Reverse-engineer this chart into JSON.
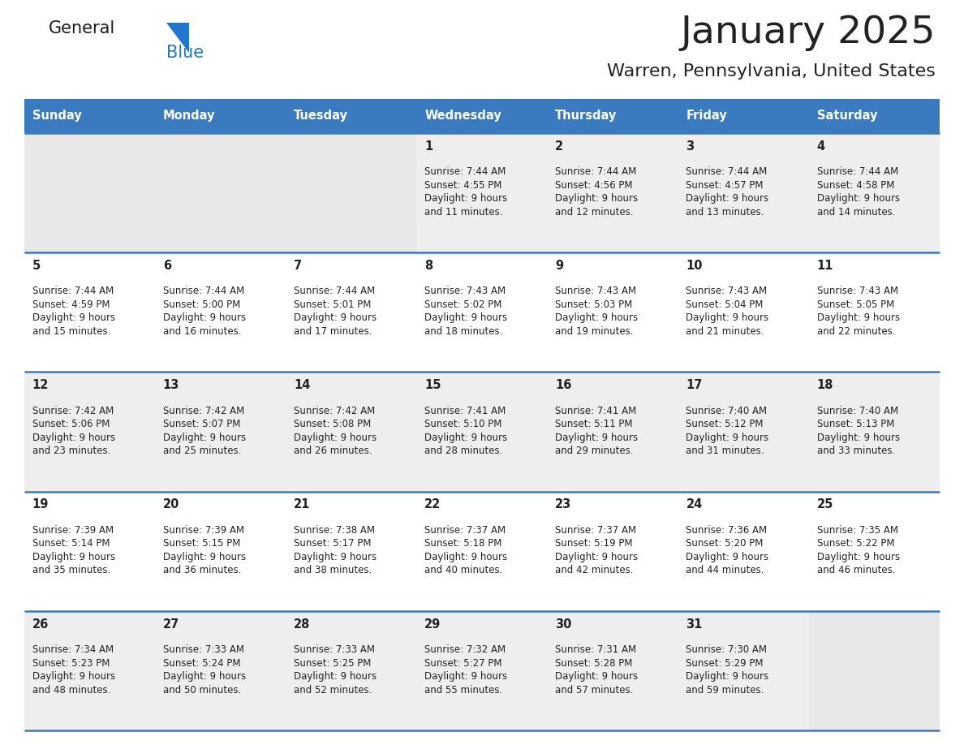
{
  "title": "January 2025",
  "subtitle": "Warren, Pennsylvania, United States",
  "header_bg": "#3a7abf",
  "header_text_color": "#ffffff",
  "day_names": [
    "Sunday",
    "Monday",
    "Tuesday",
    "Wednesday",
    "Thursday",
    "Friday",
    "Saturday"
  ],
  "weeks": [
    [
      {
        "day": "",
        "sunrise": "",
        "sunset": "",
        "daylight": ""
      },
      {
        "day": "",
        "sunrise": "",
        "sunset": "",
        "daylight": ""
      },
      {
        "day": "",
        "sunrise": "",
        "sunset": "",
        "daylight": ""
      },
      {
        "day": "1",
        "sunrise": "Sunrise: 7:44 AM",
        "sunset": "Sunset: 4:55 PM",
        "daylight": "Daylight: 9 hours\nand 11 minutes."
      },
      {
        "day": "2",
        "sunrise": "Sunrise: 7:44 AM",
        "sunset": "Sunset: 4:56 PM",
        "daylight": "Daylight: 9 hours\nand 12 minutes."
      },
      {
        "day": "3",
        "sunrise": "Sunrise: 7:44 AM",
        "sunset": "Sunset: 4:57 PM",
        "daylight": "Daylight: 9 hours\nand 13 minutes."
      },
      {
        "day": "4",
        "sunrise": "Sunrise: 7:44 AM",
        "sunset": "Sunset: 4:58 PM",
        "daylight": "Daylight: 9 hours\nand 14 minutes."
      }
    ],
    [
      {
        "day": "5",
        "sunrise": "Sunrise: 7:44 AM",
        "sunset": "Sunset: 4:59 PM",
        "daylight": "Daylight: 9 hours\nand 15 minutes."
      },
      {
        "day": "6",
        "sunrise": "Sunrise: 7:44 AM",
        "sunset": "Sunset: 5:00 PM",
        "daylight": "Daylight: 9 hours\nand 16 minutes."
      },
      {
        "day": "7",
        "sunrise": "Sunrise: 7:44 AM",
        "sunset": "Sunset: 5:01 PM",
        "daylight": "Daylight: 9 hours\nand 17 minutes."
      },
      {
        "day": "8",
        "sunrise": "Sunrise: 7:43 AM",
        "sunset": "Sunset: 5:02 PM",
        "daylight": "Daylight: 9 hours\nand 18 minutes."
      },
      {
        "day": "9",
        "sunrise": "Sunrise: 7:43 AM",
        "sunset": "Sunset: 5:03 PM",
        "daylight": "Daylight: 9 hours\nand 19 minutes."
      },
      {
        "day": "10",
        "sunrise": "Sunrise: 7:43 AM",
        "sunset": "Sunset: 5:04 PM",
        "daylight": "Daylight: 9 hours\nand 21 minutes."
      },
      {
        "day": "11",
        "sunrise": "Sunrise: 7:43 AM",
        "sunset": "Sunset: 5:05 PM",
        "daylight": "Daylight: 9 hours\nand 22 minutes."
      }
    ],
    [
      {
        "day": "12",
        "sunrise": "Sunrise: 7:42 AM",
        "sunset": "Sunset: 5:06 PM",
        "daylight": "Daylight: 9 hours\nand 23 minutes."
      },
      {
        "day": "13",
        "sunrise": "Sunrise: 7:42 AM",
        "sunset": "Sunset: 5:07 PM",
        "daylight": "Daylight: 9 hours\nand 25 minutes."
      },
      {
        "day": "14",
        "sunrise": "Sunrise: 7:42 AM",
        "sunset": "Sunset: 5:08 PM",
        "daylight": "Daylight: 9 hours\nand 26 minutes."
      },
      {
        "day": "15",
        "sunrise": "Sunrise: 7:41 AM",
        "sunset": "Sunset: 5:10 PM",
        "daylight": "Daylight: 9 hours\nand 28 minutes."
      },
      {
        "day": "16",
        "sunrise": "Sunrise: 7:41 AM",
        "sunset": "Sunset: 5:11 PM",
        "daylight": "Daylight: 9 hours\nand 29 minutes."
      },
      {
        "day": "17",
        "sunrise": "Sunrise: 7:40 AM",
        "sunset": "Sunset: 5:12 PM",
        "daylight": "Daylight: 9 hours\nand 31 minutes."
      },
      {
        "day": "18",
        "sunrise": "Sunrise: 7:40 AM",
        "sunset": "Sunset: 5:13 PM",
        "daylight": "Daylight: 9 hours\nand 33 minutes."
      }
    ],
    [
      {
        "day": "19",
        "sunrise": "Sunrise: 7:39 AM",
        "sunset": "Sunset: 5:14 PM",
        "daylight": "Daylight: 9 hours\nand 35 minutes."
      },
      {
        "day": "20",
        "sunrise": "Sunrise: 7:39 AM",
        "sunset": "Sunset: 5:15 PM",
        "daylight": "Daylight: 9 hours\nand 36 minutes."
      },
      {
        "day": "21",
        "sunrise": "Sunrise: 7:38 AM",
        "sunset": "Sunset: 5:17 PM",
        "daylight": "Daylight: 9 hours\nand 38 minutes."
      },
      {
        "day": "22",
        "sunrise": "Sunrise: 7:37 AM",
        "sunset": "Sunset: 5:18 PM",
        "daylight": "Daylight: 9 hours\nand 40 minutes."
      },
      {
        "day": "23",
        "sunrise": "Sunrise: 7:37 AM",
        "sunset": "Sunset: 5:19 PM",
        "daylight": "Daylight: 9 hours\nand 42 minutes."
      },
      {
        "day": "24",
        "sunrise": "Sunrise: 7:36 AM",
        "sunset": "Sunset: 5:20 PM",
        "daylight": "Daylight: 9 hours\nand 44 minutes."
      },
      {
        "day": "25",
        "sunrise": "Sunrise: 7:35 AM",
        "sunset": "Sunset: 5:22 PM",
        "daylight": "Daylight: 9 hours\nand 46 minutes."
      }
    ],
    [
      {
        "day": "26",
        "sunrise": "Sunrise: 7:34 AM",
        "sunset": "Sunset: 5:23 PM",
        "daylight": "Daylight: 9 hours\nand 48 minutes."
      },
      {
        "day": "27",
        "sunrise": "Sunrise: 7:33 AM",
        "sunset": "Sunset: 5:24 PM",
        "daylight": "Daylight: 9 hours\nand 50 minutes."
      },
      {
        "day": "28",
        "sunrise": "Sunrise: 7:33 AM",
        "sunset": "Sunset: 5:25 PM",
        "daylight": "Daylight: 9 hours\nand 52 minutes."
      },
      {
        "day": "29",
        "sunrise": "Sunrise: 7:32 AM",
        "sunset": "Sunset: 5:27 PM",
        "daylight": "Daylight: 9 hours\nand 55 minutes."
      },
      {
        "day": "30",
        "sunrise": "Sunrise: 7:31 AM",
        "sunset": "Sunset: 5:28 PM",
        "daylight": "Daylight: 9 hours\nand 57 minutes."
      },
      {
        "day": "31",
        "sunrise": "Sunrise: 7:30 AM",
        "sunset": "Sunset: 5:29 PM",
        "daylight": "Daylight: 9 hours\nand 59 minutes."
      },
      {
        "day": "",
        "sunrise": "",
        "sunset": "",
        "daylight": ""
      }
    ]
  ],
  "row_bg_colors": [
    "#eeeeee",
    "#ffffff",
    "#eeeeee",
    "#ffffff",
    "#eeeeee"
  ],
  "cell_bg_empty": "#e8e8e8",
  "border_color": "#3a7abf",
  "text_color": "#222222",
  "logo_general_color": "#1a1a1a",
  "logo_blue_color": "#2277cc",
  "figwidth": 11.88,
  "figheight": 9.18,
  "dpi": 100
}
